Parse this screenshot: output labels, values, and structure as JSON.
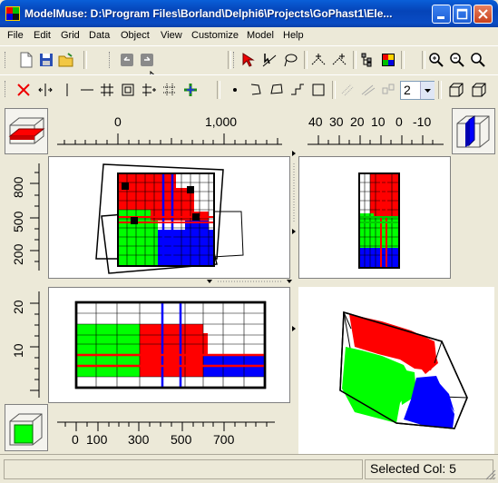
{
  "title": "ModelMuse: D:\\Program Files\\Borland\\Delphi6\\Projects\\GoPhast1\\Ele...",
  "menu": [
    "File",
    "Edit",
    "Grid",
    "Data",
    "Object",
    "View",
    "Customize",
    "Model",
    "Help"
  ],
  "layer_spin_value": "2",
  "top_ruler_labels": [
    "0",
    "1,000"
  ],
  "side_ruler_top_labels": [
    "40",
    "30",
    "20",
    "10",
    "0",
    "-10"
  ],
  "left_ruler_top_labels": [
    "800",
    "500",
    "200"
  ],
  "left_ruler_bottom_labels": [
    "20",
    "10"
  ],
  "bottom_ruler_labels": [
    "0",
    "100",
    "300",
    "500",
    "700"
  ],
  "status": {
    "left": "",
    "right": "Selected Col: 5"
  },
  "colors": {
    "red": "#ff0000",
    "green": "#00ff00",
    "blue": "#0000ff",
    "accent": "#0a5fd8"
  },
  "icons": [
    "new-file-icon",
    "save-icon",
    "open-folder-icon",
    "undo-icon",
    "redo-icon",
    "select-arrow-icon",
    "select-line-icon",
    "lasso-icon",
    "vertex-add-icon",
    "vertex-move-icon",
    "grid-tree-icon",
    "color-grid-icon",
    "zoom-in-icon",
    "zoom-out-icon",
    "zoom-pan-icon",
    "delete-x-icon",
    "split-col-icon",
    "vline-icon",
    "hline-icon",
    "grid-icon",
    "grid-subdivide-icon",
    "grid-move-icon",
    "grid-dots-icon",
    "grid-plus-icon",
    "point-icon",
    "polyline-icon",
    "polygon-icon",
    "step-icon",
    "rectangle-icon",
    "cube-front-icon",
    "cube-top-icon"
  ]
}
